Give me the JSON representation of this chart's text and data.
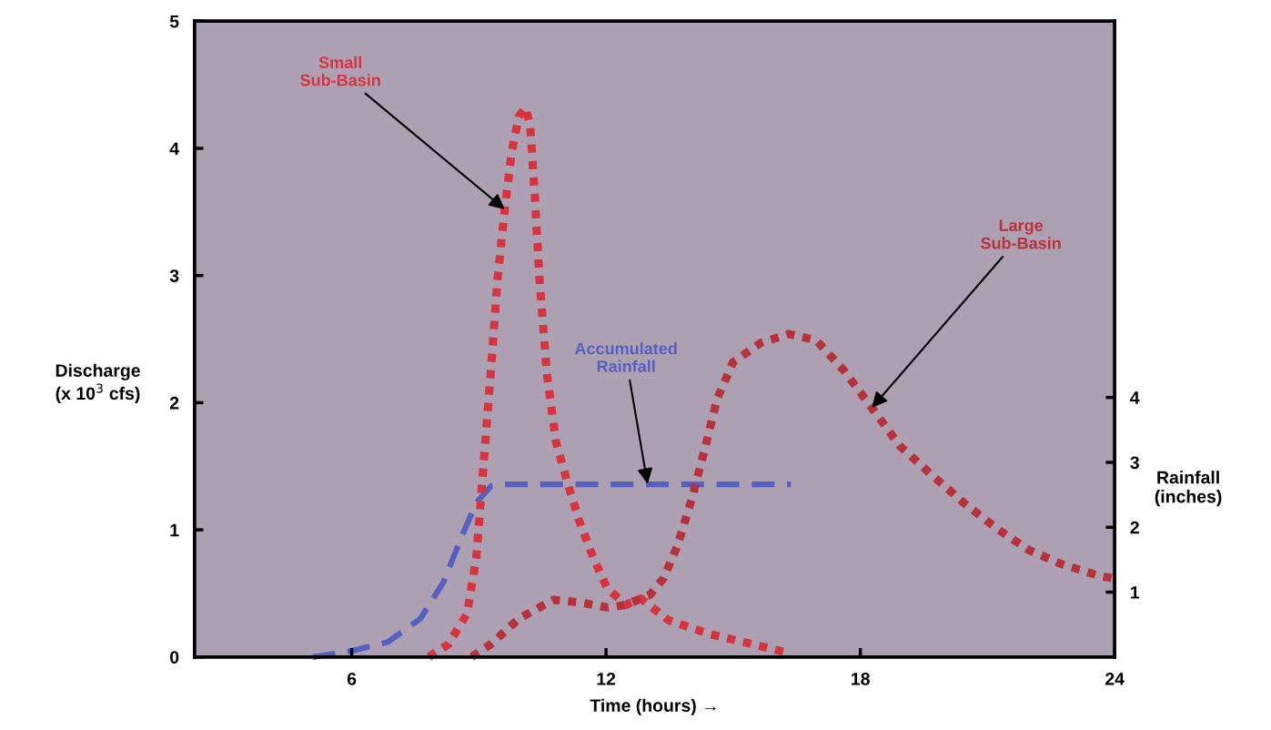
{
  "chart_data": {
    "type": "line",
    "xlabel": "Time (hours) →",
    "ylabel": "Discharge\n(x 10$^{3}$ cfs)",
    "y2label": "Rainfall\n(inches)",
    "xlim": [
      2.29,
      24
    ],
    "xticks": [
      6,
      12,
      18,
      24
    ],
    "ylim": [
      0,
      5
    ],
    "yticks": [
      0,
      1,
      2,
      3,
      4,
      5
    ],
    "y2lim": [
      0,
      9.8
    ],
    "y2ticks": [
      1,
      2,
      3,
      4
    ],
    "grid": false,
    "marker": "none",
    "series": [
      {
        "color": "#d8343f",
        "line_style": "dotted",
        "x": [
          7.82,
          8.28,
          8.72,
          8.94,
          9.11,
          9.28,
          9.44,
          9.61,
          9.77,
          9.94,
          10.1,
          10.21,
          10.32,
          10.43,
          10.6,
          10.82,
          11.1,
          11.37,
          11.7,
          12.03,
          12.47,
          12.82,
          13.47,
          14.45,
          15.33,
          16.2,
          16.3
        ],
        "values": [
          0,
          0.1,
          0.34,
          0.78,
          1.51,
          2.24,
          2.97,
          3.52,
          3.96,
          4.25,
          4.32,
          4.18,
          3.63,
          2.97,
          2.24,
          1.69,
          1.36,
          1.07,
          0.78,
          0.54,
          0.41,
          0.46,
          0.29,
          0.18,
          0.11,
          0.04,
          0
        ]
      },
      {
        "color": "#5560c0",
        "line_style": "dashed",
        "axis": "y2",
        "x": [
          5.08,
          5.97,
          6.85,
          7.62,
          8.17,
          8.61,
          8.94,
          9.28,
          9.61,
          16.36
        ],
        "values": [
          0,
          0.09,
          0.23,
          0.59,
          1.16,
          1.88,
          2.38,
          2.63,
          2.66,
          2.66
        ]
      },
      {
        "color": "#b8323c",
        "line_style": "dotted",
        "x": [
          8.83,
          9.28,
          9.94,
          10.76,
          11.37,
          12.03,
          12.47,
          13.04,
          13.36,
          13.69,
          14.02,
          14.35,
          14.62,
          15.0,
          15.65,
          16.31,
          16.96,
          17.62,
          18.27,
          18.93,
          19.69,
          20.45,
          21.22,
          21.98,
          22.75,
          23.62,
          23.95
        ],
        "values": [
          0,
          0.1,
          0.3,
          0.45,
          0.43,
          0.39,
          0.41,
          0.49,
          0.62,
          0.88,
          1.24,
          1.66,
          2.03,
          2.32,
          2.47,
          2.54,
          2.49,
          2.25,
          1.96,
          1.66,
          1.43,
          1.21,
          1.01,
          0.84,
          0.73,
          0.64,
          0.62
        ]
      }
    ],
    "annotations": [
      {
        "text": "Small\nSub-Basin",
        "x": 9.61,
        "y": 3.52
      },
      {
        "text": "Accumulated\nRainfall",
        "x": 12.98,
        "y": 1.36
      },
      {
        "text": "Large\nSub-Basin",
        "x": 18.27,
        "y": 1.96
      }
    ]
  }
}
